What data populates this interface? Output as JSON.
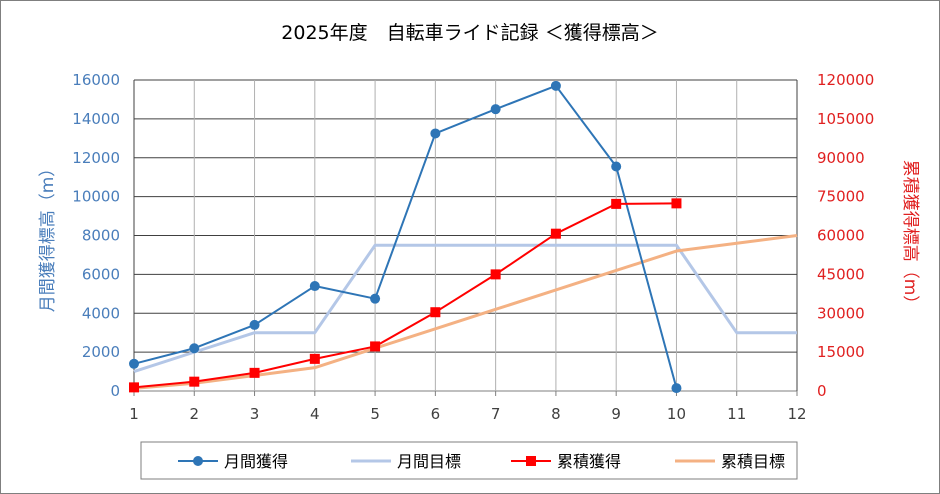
{
  "chart_data": {
    "type": "line",
    "title": "2025年度　自転車ライド記録 ＜獲得標高＞",
    "xlabel": "",
    "ylabel": "月間獲得標高（m）",
    "y2label": "累積獲得標高（m）",
    "x": [
      1,
      2,
      3,
      4,
      5,
      6,
      7,
      8,
      9,
      10,
      11,
      12
    ],
    "xlim": [
      1,
      12
    ],
    "ylim": [
      0,
      16000
    ],
    "y2lim": [
      0,
      120000
    ],
    "yticks": [
      "0",
      "2000",
      "4000",
      "6000",
      "8000",
      "10000",
      "12000",
      "14000",
      "16000"
    ],
    "y2ticks": [
      "0",
      "15000",
      "30000",
      "45000",
      "60000",
      "75000",
      "90000",
      "105000",
      "120000"
    ],
    "xticks": [
      "1",
      "2",
      "3",
      "4",
      "5",
      "6",
      "7",
      "8",
      "9",
      "10",
      "11",
      "12"
    ],
    "grid": true,
    "legend_position": "bottom",
    "series": [
      {
        "name": "月間獲得",
        "axis": "left",
        "color": "#2e75b6",
        "marker": "circle",
        "x": [
          1,
          2,
          3,
          4,
          5,
          6,
          7,
          8,
          9,
          10
        ],
        "values": [
          1400,
          2200,
          3400,
          5400,
          4750,
          13250,
          14500,
          15700,
          11550,
          150
        ]
      },
      {
        "name": "月間目標",
        "axis": "left",
        "color": "#b4c7e7",
        "marker": "none",
        "x": [
          1,
          2,
          3,
          4,
          5,
          6,
          7,
          8,
          9,
          10,
          11,
          12
        ],
        "values": [
          1000,
          2000,
          3000,
          3000,
          7500,
          7500,
          7500,
          7500,
          7500,
          7500,
          3000,
          3000
        ]
      },
      {
        "name": "累積獲得",
        "axis": "right",
        "color": "#ff0000",
        "marker": "square",
        "x": [
          1,
          2,
          3,
          4,
          5,
          6,
          7,
          8,
          9,
          10
        ],
        "values": [
          1400,
          3600,
          7000,
          12400,
          17200,
          30400,
          45000,
          60700,
          72200,
          72400
        ]
      },
      {
        "name": "累積目標",
        "axis": "right",
        "color": "#f4b183",
        "marker": "none",
        "x": [
          1,
          2,
          3,
          4,
          5,
          6,
          7,
          8,
          9,
          10,
          11,
          12
        ],
        "values": [
          1000,
          3000,
          6000,
          9000,
          16500,
          24000,
          31500,
          39000,
          46500,
          54000,
          57000,
          60000
        ]
      }
    ]
  }
}
